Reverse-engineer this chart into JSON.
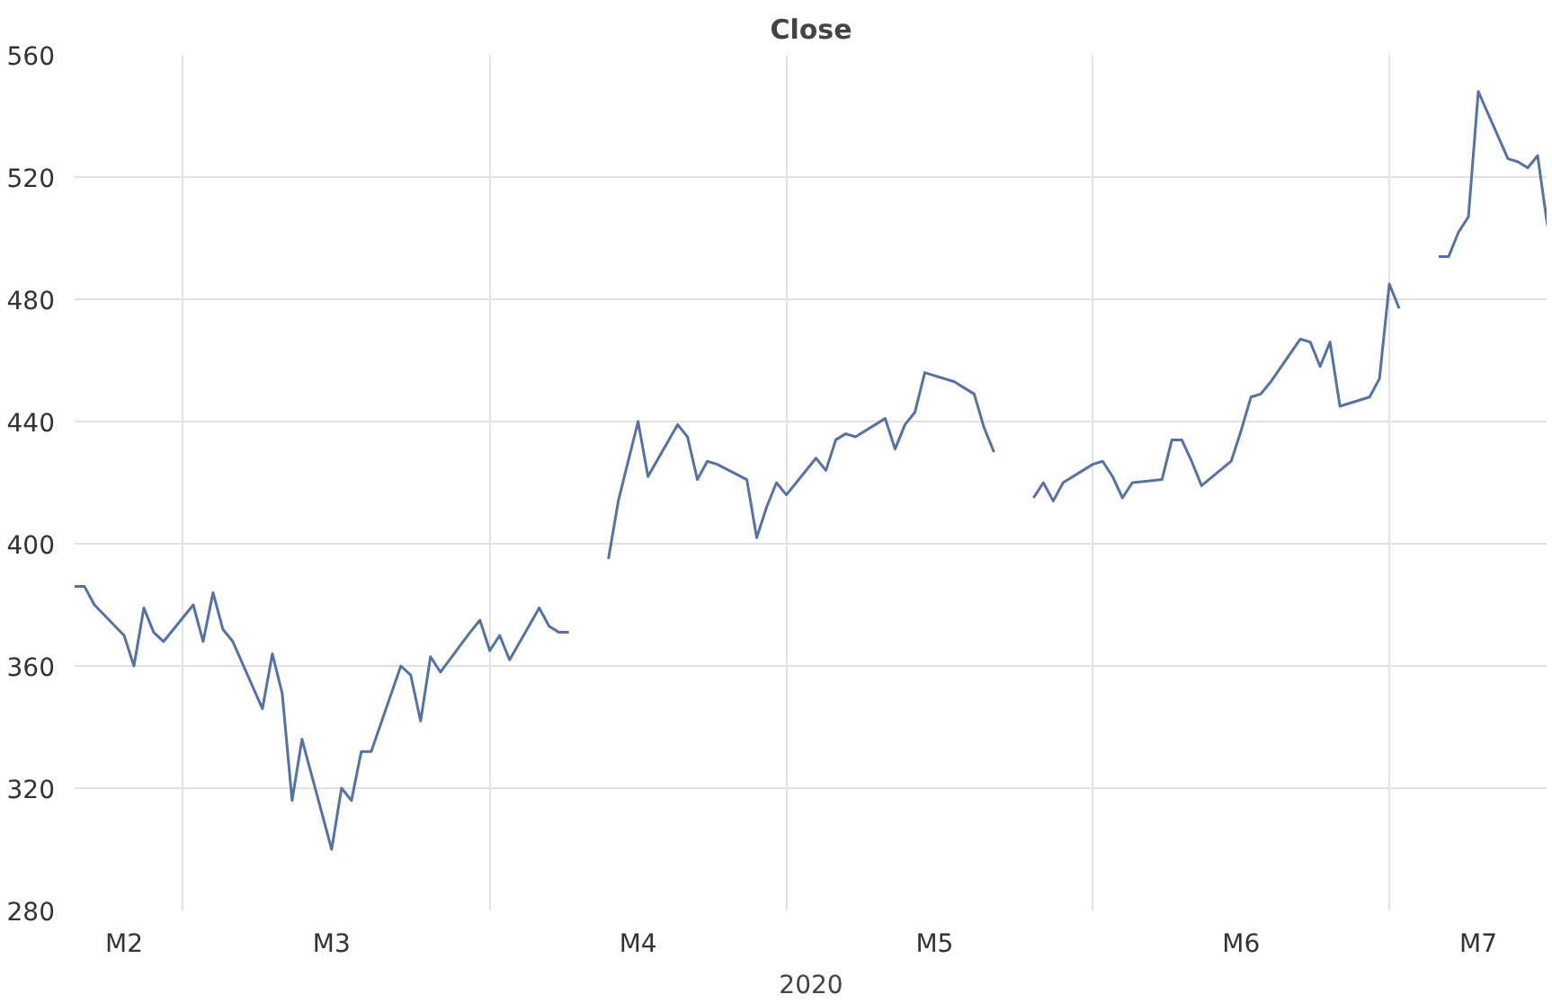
{
  "chart_data": {
    "type": "line",
    "title": "Close",
    "xlabel": "2020",
    "x": [
      "2020-02-19",
      "2020-02-20",
      "2020-02-21",
      "2020-02-24",
      "2020-02-25",
      "2020-02-26",
      "2020-02-27",
      "2020-02-28",
      "2020-03-02",
      "2020-03-03",
      "2020-03-04",
      "2020-03-05",
      "2020-03-06",
      "2020-03-09",
      "2020-03-10",
      "2020-03-11",
      "2020-03-12",
      "2020-03-13",
      "2020-03-16",
      "2020-03-17",
      "2020-03-18",
      "2020-03-19",
      "2020-03-20",
      "2020-03-23",
      "2020-03-24",
      "2020-03-25",
      "2020-03-26",
      "2020-03-27",
      "2020-03-30",
      "2020-03-31",
      "2020-04-01",
      "2020-04-02",
      "2020-04-03",
      "2020-04-06",
      "2020-04-07",
      "2020-04-08",
      "2020-04-09",
      "2020-04-10",
      "2020-04-13",
      "2020-04-14",
      "2020-04-15",
      "2020-04-16",
      "2020-04-17",
      "2020-04-20",
      "2020-04-21",
      "2020-04-22",
      "2020-04-23",
      "2020-04-24",
      "2020-04-27",
      "2020-04-28",
      "2020-04-29",
      "2020-04-30",
      "2020-05-01",
      "2020-05-04",
      "2020-05-05",
      "2020-05-06",
      "2020-05-07",
      "2020-05-08",
      "2020-05-11",
      "2020-05-12",
      "2020-05-13",
      "2020-05-14",
      "2020-05-15",
      "2020-05-18",
      "2020-05-19",
      "2020-05-20",
      "2020-05-21",
      "2020-05-22",
      "2020-05-25",
      "2020-05-26",
      "2020-05-27",
      "2020-05-28",
      "2020-05-29",
      "2020-06-01",
      "2020-06-02",
      "2020-06-03",
      "2020-06-04",
      "2020-06-05",
      "2020-06-08",
      "2020-06-09",
      "2020-06-10",
      "2020-06-11",
      "2020-06-12",
      "2020-06-15",
      "2020-06-16",
      "2020-06-17",
      "2020-06-18",
      "2020-06-19",
      "2020-06-22",
      "2020-06-23",
      "2020-06-24",
      "2020-06-25",
      "2020-06-26",
      "2020-06-29",
      "2020-06-30",
      "2020-07-01",
      "2020-07-02",
      "2020-07-03",
      "2020-07-06",
      "2020-07-07",
      "2020-07-08",
      "2020-07-09",
      "2020-07-10",
      "2020-07-13",
      "2020-07-14",
      "2020-07-15",
      "2020-07-16",
      "2020-07-17"
    ],
    "series": [
      {
        "color": "#5472a8",
        "values": [
          386,
          386,
          380,
          370,
          360,
          379,
          371,
          368,
          380,
          368,
          384,
          372,
          368,
          346,
          364,
          351,
          316,
          336,
          300,
          320,
          316,
          332,
          332,
          360,
          357,
          342,
          363,
          358,
          371,
          375,
          365,
          370,
          362,
          379,
          373,
          371,
          371,
          null,
          395,
          414,
          427,
          440,
          422,
          439,
          435,
          421,
          427,
          426,
          421,
          402,
          412,
          420,
          416,
          428,
          424,
          434,
          436,
          435,
          441,
          431,
          439,
          443,
          456,
          453,
          451,
          449,
          438,
          430,
          null,
          415,
          420,
          414,
          420,
          426,
          427,
          422,
          415,
          420,
          421,
          434,
          434,
          427,
          419,
          427,
          437,
          448,
          449,
          453,
          467,
          466,
          458,
          466,
          445,
          448,
          454,
          485,
          477,
          null,
          494,
          494,
          502,
          507,
          548,
          526,
          525,
          523,
          527,
          504
        ]
      }
    ],
    "xlim": [
      "2020-02-19",
      "2020-07-17"
    ],
    "xticks": [
      {
        "value": "2020-02-24",
        "label": "M2"
      },
      {
        "value": "2020-03-01",
        "label": null
      },
      {
        "value": "2020-03-16",
        "label": "M3"
      },
      {
        "value": "2020-04-01",
        "label": null
      },
      {
        "value": "2020-04-16",
        "label": "M4"
      },
      {
        "value": "2020-05-01",
        "label": null
      },
      {
        "value": "2020-05-16",
        "label": "M5"
      },
      {
        "value": "2020-06-01",
        "label": null
      },
      {
        "value": "2020-06-16",
        "label": "M6"
      },
      {
        "value": "2020-07-01",
        "label": null
      },
      {
        "value": "2020-07-10",
        "label": "M7"
      }
    ],
    "ylim": [
      280,
      560
    ],
    "yticks": [
      280,
      320,
      360,
      400,
      440,
      480,
      520,
      560
    ],
    "grid": true,
    "line_style": "solid",
    "marker": "none"
  }
}
